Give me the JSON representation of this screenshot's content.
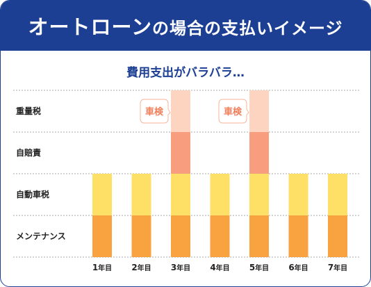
{
  "banner": {
    "title_main": "オートローン",
    "title_suffix": "の場合の支払いイメージ"
  },
  "chart_data": {
    "type": "bar",
    "stacked": true,
    "subtitle": "費用支出がバラバラ…",
    "categories": [
      {
        "num": "1",
        "suffix": "年目"
      },
      {
        "num": "2",
        "suffix": "年目"
      },
      {
        "num": "3",
        "suffix": "年目"
      },
      {
        "num": "4",
        "suffix": "年目"
      },
      {
        "num": "5",
        "suffix": "年目"
      },
      {
        "num": "6",
        "suffix": "年目"
      },
      {
        "num": "7",
        "suffix": "年目"
      }
    ],
    "series": [
      {
        "name": "メンテナンス",
        "color": "#f9a240",
        "values": [
          1,
          1,
          1,
          1,
          1,
          1,
          1
        ]
      },
      {
        "name": "自動車税",
        "color": "#ffe066",
        "values": [
          1,
          1,
          1,
          1,
          1,
          1,
          1
        ]
      },
      {
        "name": "自賠責",
        "color": "#f99d7f",
        "values": [
          0,
          0,
          1,
          0,
          1,
          0,
          0
        ]
      },
      {
        "name": "重量税",
        "color": "#fcd4bf",
        "values": [
          0,
          0,
          1,
          0,
          1,
          0,
          0
        ]
      }
    ],
    "annotations": [
      {
        "text": "車検",
        "category_index": 2
      },
      {
        "text": "車検",
        "category_index": 4
      }
    ],
    "grid_line_color": "#a9a9a9",
    "note_border_color": "#f7b49a",
    "note_text_color": "#f07f5c"
  }
}
